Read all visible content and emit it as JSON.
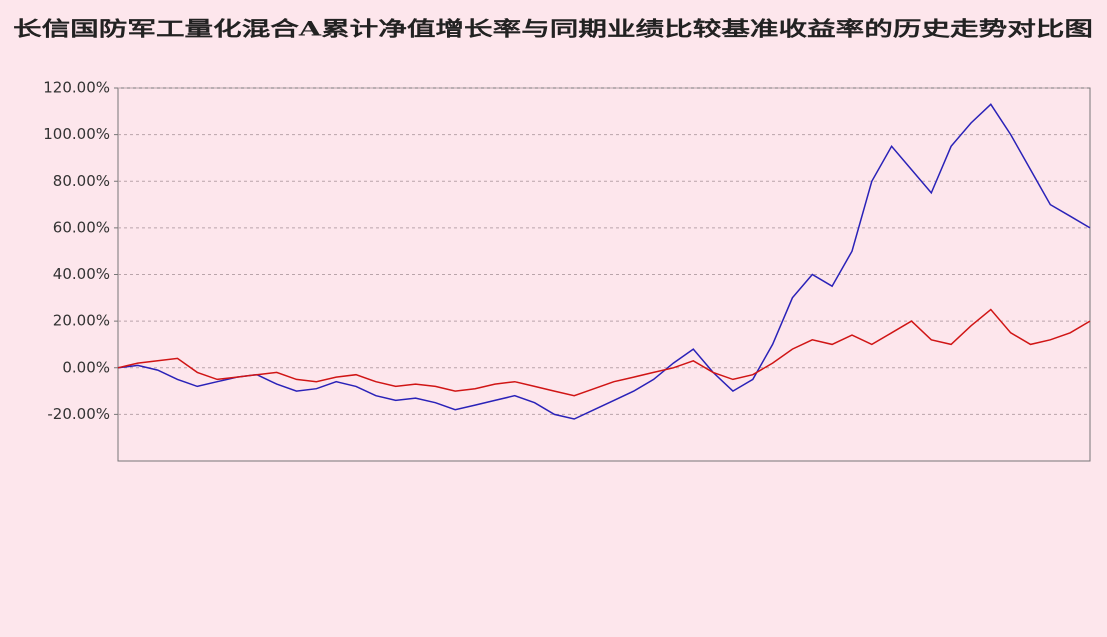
{
  "chart_data": {
    "type": "line",
    "title": "长信国防军工量化混合A累计净值增长率与同期业绩比较基准收益率的历史走势对比图",
    "categories": [
      null,
      null,
      null,
      null,
      null,
      null,
      null,
      null,
      null,
      null,
      null,
      null,
      null,
      null,
      null,
      null,
      null,
      null,
      null,
      null,
      null,
      null,
      null,
      null,
      null,
      null,
      null,
      null,
      null,
      null,
      null,
      null,
      null,
      null,
      null,
      null,
      null,
      null,
      null,
      null,
      null,
      null,
      null,
      null,
      null,
      null,
      null,
      null,
      null,
      null
    ],
    "series": [
      {
        "color": "#2a22b8",
        "values": [
          0,
          1,
          -1,
          -5,
          -8,
          -6,
          -4,
          -3,
          -7,
          -10,
          -9,
          -6,
          -8,
          -12,
          -14,
          -13,
          -15,
          -18,
          -16,
          -14,
          -12,
          -15,
          -20,
          -22,
          -18,
          -14,
          -10,
          -5,
          2,
          8,
          -2,
          -10,
          -5,
          10,
          30,
          40,
          35,
          50,
          80,
          95,
          85,
          75,
          95,
          105,
          113,
          100,
          85,
          70,
          65,
          60
        ]
      },
      {
        "color": "#d01515",
        "values": [
          0,
          2,
          3,
          4,
          -2,
          -5,
          -4,
          -3,
          -2,
          -5,
          -6,
          -4,
          -3,
          -6,
          -8,
          -7,
          -8,
          -10,
          -9,
          -7,
          -6,
          -8,
          -10,
          -12,
          -9,
          -6,
          -4,
          -2,
          0,
          3,
          -2,
          -5,
          -3,
          2,
          8,
          12,
          10,
          14,
          10,
          15,
          20,
          12,
          10,
          18,
          25,
          15,
          10,
          12,
          15,
          20
        ]
      }
    ],
    "ylim": [
      -40,
      120
    ],
    "yticks": [
      {
        "value": -20,
        "label": "-20.00%"
      },
      {
        "value": 0,
        "label": "0.00%"
      },
      {
        "value": 20,
        "label": "20.00%"
      },
      {
        "value": 40,
        "label": "40.00%"
      },
      {
        "value": 60,
        "label": "60.00%"
      },
      {
        "value": 80,
        "label": "80.00%"
      },
      {
        "value": 100,
        "label": "100.00%"
      },
      {
        "value": 120,
        "label": "120.00%"
      }
    ],
    "grid": true
  }
}
